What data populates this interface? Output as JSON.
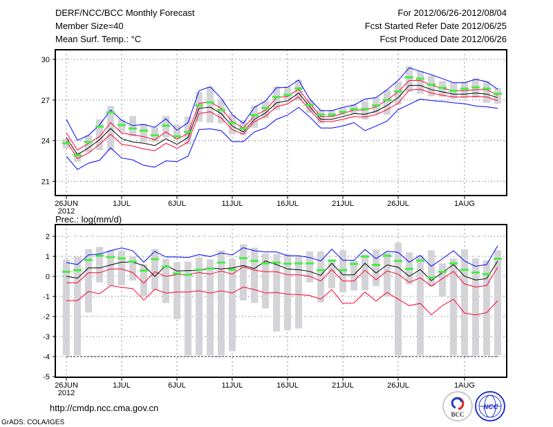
{
  "header": {
    "title": "DERF/NCC/BCC Monthly Forecast",
    "member_size": "Member Size=40",
    "variable": "Mean Surf. Temp.: °C",
    "period": "For 2012/06/26-2012/08/04",
    "started": "Fcst Started Refer Date 2012/06/25",
    "produced": "Fcst Produced Date 2012/06/26"
  },
  "footer": {
    "url": "http://cmdp.ncc.cma.gov.cn",
    "grads": "GrADS: COLA/IGES",
    "logo_bcc": "BCC",
    "logo_ncc": "NCC"
  },
  "colors": {
    "envelope": "#0000ff",
    "inner": "#ff0033",
    "mean": "#000000",
    "marker": "#44ee44",
    "bar": "#d4d4d8",
    "grid": "#888888"
  },
  "chart_data": [
    {
      "type": "line",
      "title": "Mean Surf. Temp.: °C",
      "xlabel": "",
      "ylabel": "",
      "x_start": "2012-06-26",
      "days": 40,
      "xticks": [
        {
          "day": 0,
          "label": "26JUN"
        },
        {
          "day": 5,
          "label": "1JUL"
        },
        {
          "day": 10,
          "label": "6JUL"
        },
        {
          "day": 15,
          "label": "11JUL"
        },
        {
          "day": 20,
          "label": "16JUL"
        },
        {
          "day": 25,
          "label": "21JUL"
        },
        {
          "day": 30,
          "label": "26JUL"
        },
        {
          "day": 36,
          "label": "1AUG"
        }
      ],
      "xyear": "2012",
      "yticks": [
        21,
        24,
        27,
        30
      ],
      "ylim": [
        19,
        31.2
      ],
      "grid": true,
      "series": [
        {
          "name": "max",
          "color": "#0000ff",
          "values": [
            25.58,
            24.03,
            24.4,
            25.16,
            26.26,
            25.5,
            25.11,
            25.2,
            24.99,
            25.61,
            24.77,
            25.33,
            27.69,
            27.98,
            27.13,
            25.92,
            25.28,
            26.46,
            26.93,
            27.91,
            27.94,
            28.48,
            27.07,
            26.22,
            26.22,
            26.46,
            26.63,
            27.07,
            27.18,
            27.77,
            28.45,
            29.38,
            29.12,
            28.87,
            28.58,
            28.28,
            28.28,
            28.53,
            28.36,
            27.8
          ]
        },
        {
          "name": "upper",
          "color": "#ff0033",
          "values": [
            24.57,
            23.3,
            23.8,
            24.3,
            25.33,
            24.57,
            24.43,
            24.3,
            24.06,
            24.65,
            24.1,
            24.53,
            26.76,
            26.85,
            26.39,
            25.41,
            24.94,
            25.83,
            26.26,
            27.18,
            27.27,
            27.8,
            26.76,
            25.78,
            25.78,
            26.0,
            26.26,
            26.26,
            26.5,
            27.0,
            27.6,
            28.45,
            28.45,
            28.1,
            27.86,
            27.69,
            27.69,
            27.77,
            27.77,
            27.35
          ]
        },
        {
          "name": "mean",
          "color": "#000000",
          "values": [
            24.23,
            22.97,
            23.47,
            24.06,
            24.9,
            24.15,
            23.9,
            23.81,
            23.64,
            24.15,
            23.73,
            24.23,
            26.39,
            26.48,
            26.0,
            25.08,
            24.65,
            25.58,
            26.04,
            26.8,
            26.93,
            27.52,
            26.5,
            25.58,
            25.58,
            25.78,
            26.0,
            25.95,
            26.17,
            26.6,
            27.18,
            28.08,
            28.08,
            27.77,
            27.6,
            27.44,
            27.44,
            27.52,
            27.44,
            27.18
          ]
        },
        {
          "name": "lower",
          "color": "#ff0033",
          "values": [
            23.98,
            22.68,
            23.08,
            23.73,
            24.48,
            23.73,
            23.6,
            23.39,
            23.26,
            23.81,
            23.43,
            23.9,
            26.0,
            26.14,
            25.67,
            24.82,
            24.48,
            25.41,
            25.8,
            26.5,
            26.73,
            27.23,
            26.26,
            25.41,
            25.41,
            25.58,
            25.78,
            25.75,
            25.92,
            26.29,
            26.76,
            27.74,
            27.8,
            27.52,
            27.35,
            27.23,
            27.23,
            27.27,
            27.23,
            26.96
          ]
        },
        {
          "name": "min",
          "color": "#0000ff",
          "values": [
            22.85,
            21.87,
            22.34,
            22.55,
            23.47,
            22.72,
            22.58,
            22.18,
            22.04,
            22.51,
            22.46,
            22.85,
            24.82,
            24.87,
            24.74,
            23.93,
            23.93,
            24.65,
            24.94,
            25.58,
            25.89,
            26.46,
            25.75,
            24.94,
            24.94,
            25.08,
            25.33,
            24.74,
            25.08,
            25.45,
            26.29,
            26.68,
            27.07,
            26.96,
            26.9,
            26.8,
            26.73,
            26.56,
            26.5,
            26.39
          ]
        },
        {
          "name": "marker",
          "color": "#44ee44",
          "values": [
            23.81,
            22.92,
            23.9,
            25.04,
            26.09,
            25.16,
            24.9,
            24.74,
            24.4,
            25.11,
            24.32,
            24.64,
            26.6,
            26.83,
            26.26,
            25.31,
            24.91,
            25.89,
            26.42,
            27.23,
            27.39,
            27.86,
            26.63,
            25.92,
            25.92,
            26.12,
            26.33,
            26.34,
            26.6,
            27.0,
            27.64,
            28.68,
            28.58,
            28.14,
            27.91,
            27.69,
            27.84,
            27.94,
            27.84,
            27.47
          ]
        }
      ],
      "bars": {
        "high": [
          24.15,
          23.13,
          24.4,
          25.58,
          26.56,
          25.58,
          25.83,
          25.24,
          24.99,
          25.83,
          25.2,
          25.78,
          27.6,
          27.98,
          27.07,
          25.92,
          25.5,
          26.6,
          26.9,
          28.0,
          28.0,
          28.5,
          27.0,
          26.29,
          26.26,
          26.43,
          26.68,
          26.9,
          27.18,
          27.74,
          28.36,
          29.5,
          29.17,
          28.8,
          28.4,
          28.3,
          28.36,
          28.6,
          28.4,
          27.9
        ],
        "low": [
          23.4,
          22.43,
          23.13,
          23.3,
          23.3,
          24.65,
          24.32,
          23.9,
          23.9,
          24.23,
          24.1,
          23.73,
          25.41,
          25.33,
          25.28,
          24.48,
          24.4,
          24.94,
          25.67,
          26.26,
          26.93,
          26.93,
          26.06,
          25.28,
          25.75,
          25.92,
          26.0,
          25.55,
          26.0,
          25.92,
          26.68,
          27.6,
          27.47,
          27.27,
          27.23,
          27.1,
          27.13,
          27.13,
          26.8,
          26.73
        ]
      }
    },
    {
      "type": "line",
      "title": "Prec.: log(mm/d)",
      "xlabel": "",
      "ylabel": "",
      "x_start": "2012-06-26",
      "days": 40,
      "xticks": [
        {
          "day": 0,
          "label": "26JUN"
        },
        {
          "day": 5,
          "label": "1JUL"
        },
        {
          "day": 10,
          "label": "6JUL"
        },
        {
          "day": 15,
          "label": "11JUL"
        },
        {
          "day": 20,
          "label": "16JUL"
        },
        {
          "day": 25,
          "label": "21JUL"
        },
        {
          "day": 30,
          "label": "26JUL"
        },
        {
          "day": 36,
          "label": "1AUG"
        }
      ],
      "xyear": "2012",
      "yticks": [
        2,
        1,
        0,
        -1,
        -2,
        -3,
        -4,
        -5
      ],
      "ylim": [
        -5,
        2.6
      ],
      "grid": true,
      "reference_line": -4,
      "series": [
        {
          "name": "max",
          "color": "#0000ff",
          "values": [
            0.69,
            0.59,
            1.07,
            1.11,
            1.28,
            1.42,
            1.28,
            0.71,
            1.25,
            0.97,
            0.97,
            0.94,
            1.09,
            0.99,
            1.17,
            1.07,
            1.43,
            1.28,
            1.22,
            1.22,
            1.03,
            1.03,
            0.94,
            0.77,
            1.36,
            0.8,
            0.8,
            1.34,
            0.88,
            1.26,
            1.2,
            0.71,
            1.05,
            0.5,
            0.88,
            1.28,
            0.77,
            0.5,
            0.59,
            1.53
          ]
        },
        {
          "name": "upper",
          "color": "#ff0033",
          "values": [
            -0.32,
            -0.32,
            0.18,
            0.18,
            0.37,
            0.37,
            0.19,
            -0.34,
            0.23,
            0.0,
            0.09,
            0.1,
            0.19,
            0.11,
            0.27,
            0.11,
            0.48,
            0.31,
            0.23,
            0.23,
            0.08,
            0.08,
            0.0,
            -0.23,
            0.34,
            -0.23,
            -0.23,
            0.31,
            -0.17,
            0.27,
            0.11,
            -0.3,
            -0.07,
            -0.49,
            -0.11,
            0.25,
            -0.38,
            -0.53,
            -0.46,
            0.46
          ]
        },
        {
          "name": "mean",
          "color": "#000000",
          "values": [
            0.0,
            -0.09,
            0.42,
            0.42,
            0.57,
            0.71,
            0.71,
            0.54,
            0.0,
            0.54,
            0.27,
            0.29,
            0.29,
            0.42,
            0.37,
            0.42,
            0.54,
            0.39,
            0.77,
            0.59,
            0.37,
            0.33,
            0.25,
            0.05,
            0.65,
            0.08,
            0.08,
            0.65,
            0.17,
            0.57,
            0.46,
            0.0,
            0.34,
            -0.21,
            0.19,
            0.59,
            0.01,
            -0.18,
            -0.11,
            0.77
          ]
        },
        {
          "name": "lower",
          "color": "#ff0033",
          "values": [
            -1.21,
            -1.21,
            -0.75,
            -0.87,
            -0.46,
            -0.55,
            -0.61,
            -1.18,
            -0.64,
            -0.83,
            -0.78,
            -0.78,
            -0.72,
            -0.83,
            -0.72,
            -0.83,
            -0.53,
            -0.66,
            -0.83,
            -0.8,
            -0.89,
            -0.91,
            -0.95,
            -1.14,
            -0.66,
            -1.35,
            -1.33,
            -0.78,
            -1.23,
            -0.8,
            -1.14,
            -1.46,
            -1.35,
            -1.92,
            -1.46,
            -1.14,
            -1.83,
            -1.92,
            -1.81,
            -1.21
          ]
        },
        {
          "name": "marker",
          "color": "#44ee44",
          "values": [
            0.23,
            0.31,
            0.82,
            1.03,
            0.96,
            0.9,
            0.74,
            0.29,
            0.86,
            0.48,
            0.14,
            0.08,
            0.33,
            0.39,
            0.69,
            0.34,
            0.91,
            0.77,
            0.65,
            0.69,
            0.63,
            0.65,
            0.65,
            0.31,
            0.79,
            0.31,
            0.62,
            0.99,
            0.57,
            1.03,
            0.77,
            0.37,
            0.79,
            -0.06,
            0.23,
            0.65,
            0.33,
            0.19,
            0.11,
            0.88
          ]
        }
      ],
      "bars": {
        "high": [
          0.85,
          0.98,
          1.36,
          1.47,
          1.32,
          1.28,
          1.0,
          0.6,
          1.36,
          0.88,
          0.7,
          0.74,
          0.94,
          0.85,
          1.3,
          0.88,
          1.6,
          1.43,
          1.15,
          1.12,
          1.1,
          1.0,
          1.25,
          1.25,
          0.8,
          1.3,
          0.8,
          1.1,
          1.35,
          1.2,
          1.68,
          1.2,
          1.05,
          1.3,
          0.65,
          0.9,
          1.35,
          0.9,
          0.8,
          1.3
        ],
        "low": [
          -3.94,
          -3.94,
          -1.8,
          -0.3,
          -0.45,
          -0.45,
          -0.2,
          -1.0,
          -0.7,
          -1.33,
          -2.14,
          -3.94,
          -3.94,
          -3.94,
          -3.94,
          -3.74,
          -1.2,
          -1.33,
          -1.6,
          -2.75,
          -2.7,
          -2.6,
          -0.3,
          -1.3,
          -0.6,
          -0.8,
          -0.7,
          -0.7,
          -0.5,
          -1.0,
          -3.94,
          -0.4,
          -3.94,
          -0.5,
          -1.0,
          -3.94,
          -3.94,
          -3.94,
          -3.94,
          -3.94
        ]
      }
    }
  ]
}
